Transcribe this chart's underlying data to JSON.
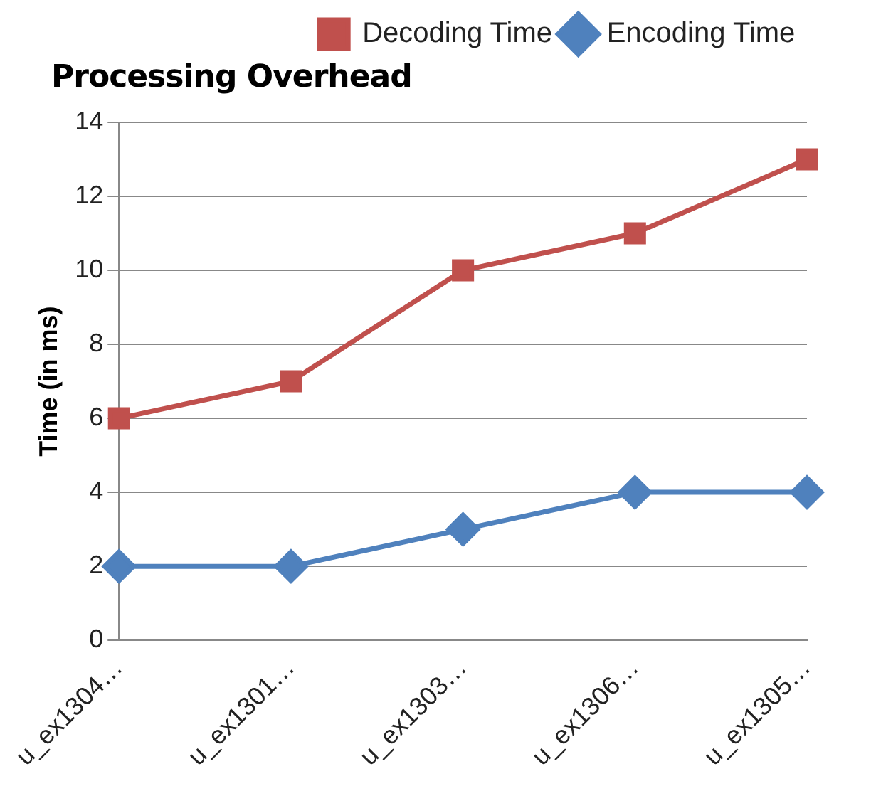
{
  "chart_data": {
    "type": "line",
    "title": "Processing Overhead",
    "ylabel": "Time (in ms)",
    "categories": [
      "u_ex1304…",
      "u_ex1301…",
      "u_ex1303…",
      "u_ex1306…",
      "u_ex1305…"
    ],
    "series": [
      {
        "name": "Decoding Time",
        "color": "#c0504d",
        "marker": "square",
        "values": [
          6,
          7,
          10,
          11,
          13
        ]
      },
      {
        "name": "Encoding Time",
        "color": "#4f81bd",
        "marker": "diamond",
        "values": [
          2,
          2,
          3,
          4,
          4
        ]
      }
    ],
    "ylim": [
      0,
      14
    ],
    "yticks": [
      0,
      2,
      4,
      6,
      8,
      10,
      12,
      14
    ],
    "grid": "y",
    "legend": "top right",
    "line_style": "solid"
  }
}
